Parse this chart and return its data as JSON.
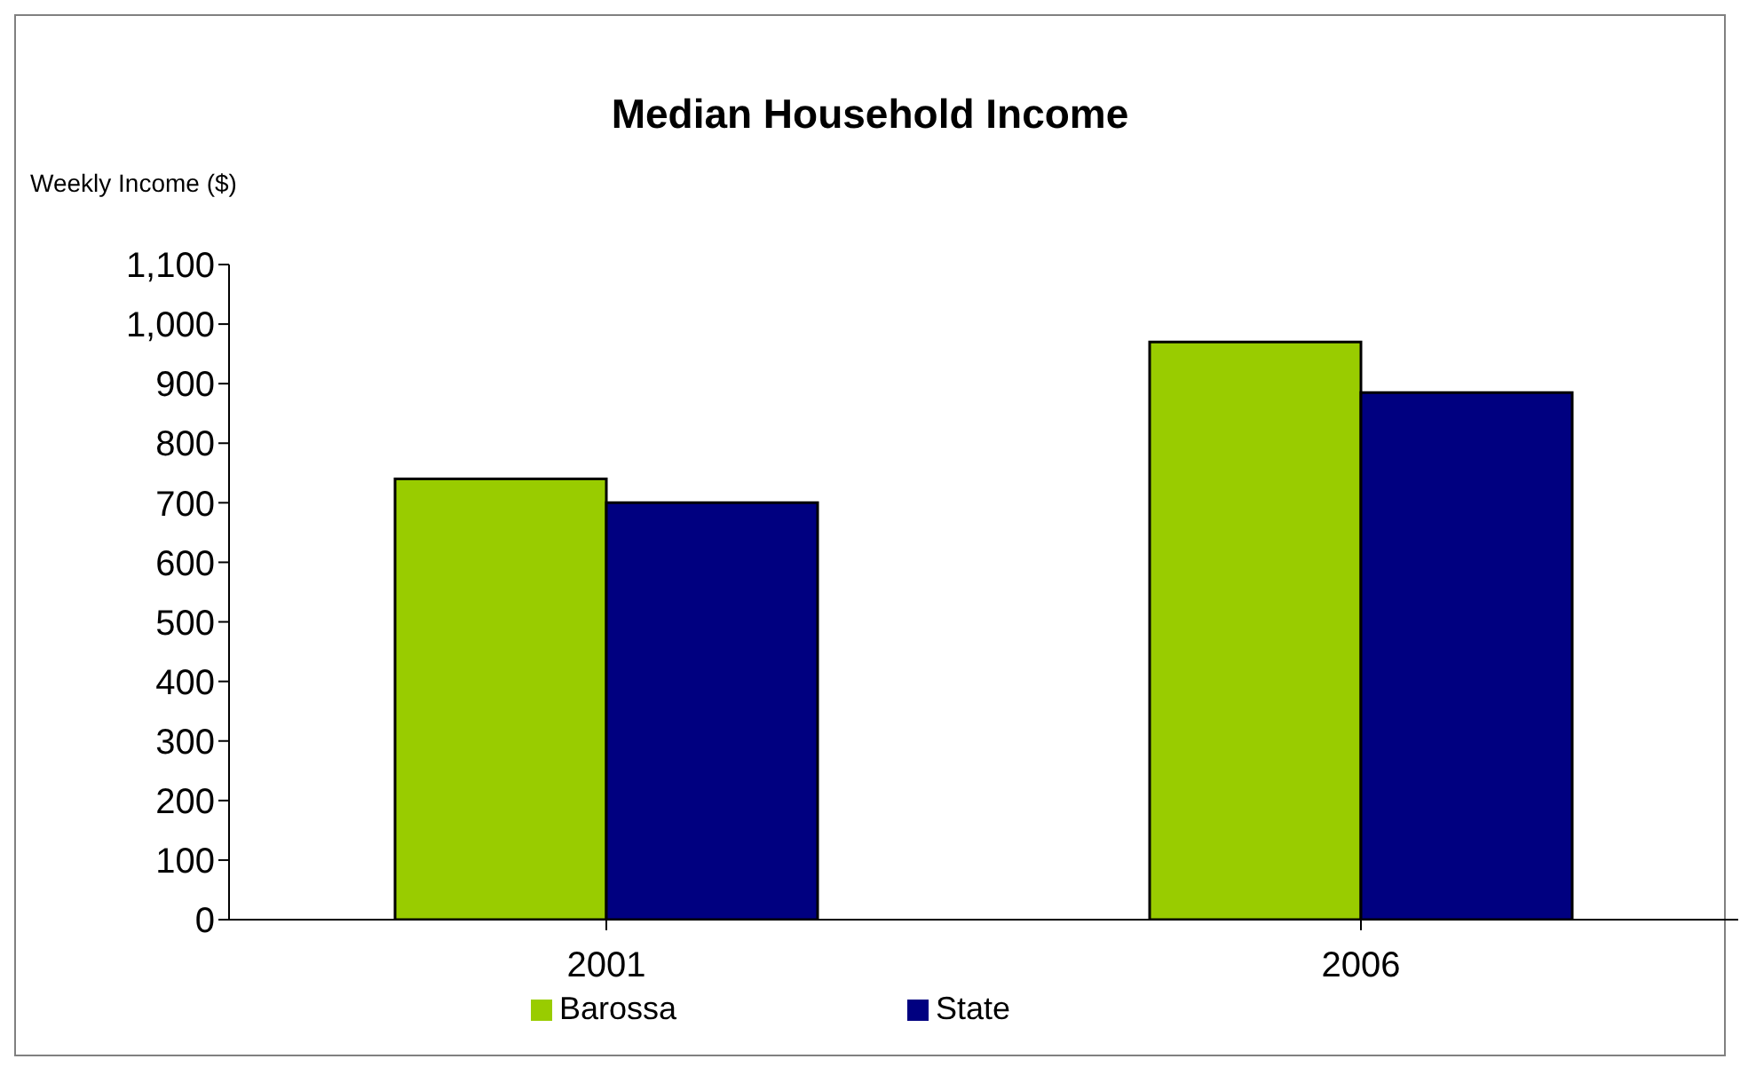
{
  "chart_data": {
    "type": "bar",
    "title": "Median Household Income",
    "ylabel": "Weekly Income ($)",
    "categories": [
      "2001",
      "2006"
    ],
    "series": [
      {
        "name": "Barossa",
        "color": "#99cc00",
        "values": [
          740,
          970
        ]
      },
      {
        "name": "State",
        "color": "#000080",
        "values": [
          700,
          885
        ]
      }
    ],
    "ylim": [
      0,
      1100
    ],
    "yticks": [
      0,
      100,
      200,
      300,
      400,
      500,
      600,
      700,
      800,
      900,
      {
        "value": 1000,
        "label": "1,000"
      },
      {
        "value": 1100,
        "label": "1,100"
      }
    ],
    "grid": false,
    "legend": "bottom"
  }
}
